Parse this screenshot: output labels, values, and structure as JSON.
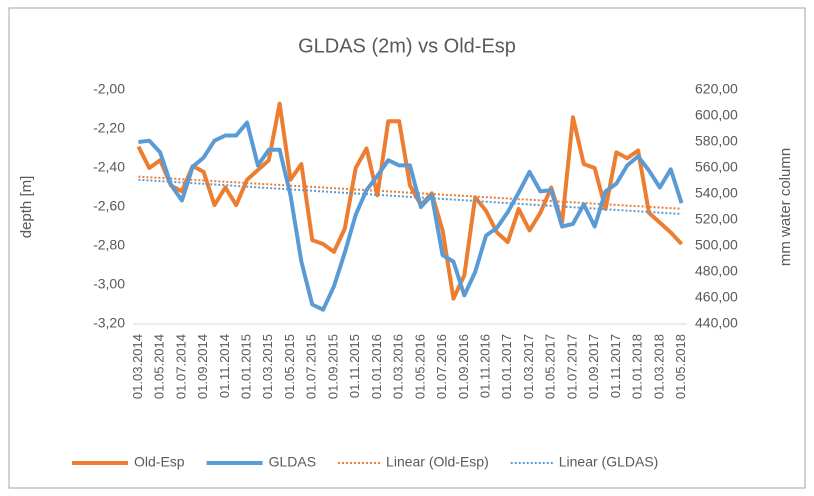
{
  "chart_data": {
    "type": "line",
    "title": "GLDAS (2m) vs Old-Esp",
    "ylabel": "depth [m]",
    "y2label": "mm water column",
    "categories": [
      "01.03.2014",
      null,
      "01.05.2014",
      null,
      "01.07.2014",
      null,
      "01.09.2014",
      null,
      "01.11.2014",
      null,
      "01.01.2015",
      null,
      "01.03.2015",
      null,
      "01.05.2015",
      null,
      "01.07.2015",
      null,
      "01.09.2015",
      null,
      "01.11.2015",
      null,
      "01.01.2016",
      null,
      "01.03.2016",
      null,
      "01.05.2016",
      null,
      "01.07.2016",
      null,
      "01.09.2016",
      null,
      "01.11.2016",
      null,
      "01.01.2017",
      null,
      "01.03.2017",
      null,
      "01.05.2017",
      null,
      "01.07.2017",
      null,
      "01.09.2017",
      null,
      "01.11.2017",
      null,
      "01.01.2018",
      null,
      "01.03.2018",
      null,
      "01.05.2018"
    ],
    "series": [
      {
        "name": "Old-Esp",
        "color": "#ED7D31",
        "trendline": {
          "name": "Linear (Old-Esp)"
        },
        "values": [
          -2.29,
          -2.4,
          -2.36,
          -2.49,
          -2.52,
          -2.39,
          -2.42,
          -2.59,
          -2.5,
          -2.59,
          -2.46,
          -2.41,
          -2.36,
          -2.07,
          -2.46,
          -2.38,
          -2.77,
          -2.79,
          -2.83,
          -2.71,
          -2.4,
          -2.3,
          -2.54,
          -2.16,
          -2.16,
          -2.49,
          -2.59,
          -2.53,
          -2.72,
          -3.07,
          -2.95,
          -2.55,
          -2.62,
          -2.73,
          -2.78,
          -2.61,
          -2.72,
          -2.63,
          -2.5,
          -2.68,
          -2.14,
          -2.38,
          -2.4,
          -2.61,
          -2.32,
          -2.35,
          -2.31,
          -2.63,
          -2.68,
          -2.73,
          -2.79
        ]
      },
      {
        "name": "GLDAS",
        "color": "#5B9BD5",
        "axis": "y2",
        "trendline": {
          "name": "Linear (GLDAS)"
        },
        "values": [
          580,
          581,
          572,
          547,
          535,
          561,
          568,
          581,
          585,
          585,
          595,
          562,
          574,
          574,
          539,
          488,
          455,
          451,
          469,
          495,
          524,
          543,
          554,
          566,
          562,
          562,
          530,
          539,
          493,
          488,
          462,
          480,
          508,
          514,
          526,
          541,
          557,
          542,
          543,
          515,
          517,
          532,
          515,
          542,
          548,
          562,
          569,
          558,
          545,
          559,
          533
        ]
      }
    ],
    "ylim": [
      -3.2,
      -2.0
    ],
    "yticks": [
      {
        "value": -2.0,
        "label": "-2,00"
      },
      {
        "value": -2.2,
        "label": "-2,20"
      },
      {
        "value": -2.4,
        "label": "-2,40"
      },
      {
        "value": -2.6,
        "label": "-2,60"
      },
      {
        "value": -2.8,
        "label": "-2,80"
      },
      {
        "value": -3.0,
        "label": "-3,00"
      },
      {
        "value": -3.2,
        "label": "-3,20"
      }
    ],
    "y2lim": [
      440,
      620
    ],
    "y2ticks": [
      {
        "value": 620,
        "label": "620,00"
      },
      {
        "value": 600,
        "label": "600,00"
      },
      {
        "value": 580,
        "label": "580,00"
      },
      {
        "value": 560,
        "label": "560,00"
      },
      {
        "value": 540,
        "label": "540,00"
      },
      {
        "value": 520,
        "label": "520,00"
      },
      {
        "value": 500,
        "label": "500,00"
      },
      {
        "value": 480,
        "label": "480,00"
      },
      {
        "value": 460,
        "label": "460,00"
      },
      {
        "value": 440,
        "label": "440,00"
      }
    ],
    "legend": "bottom"
  }
}
